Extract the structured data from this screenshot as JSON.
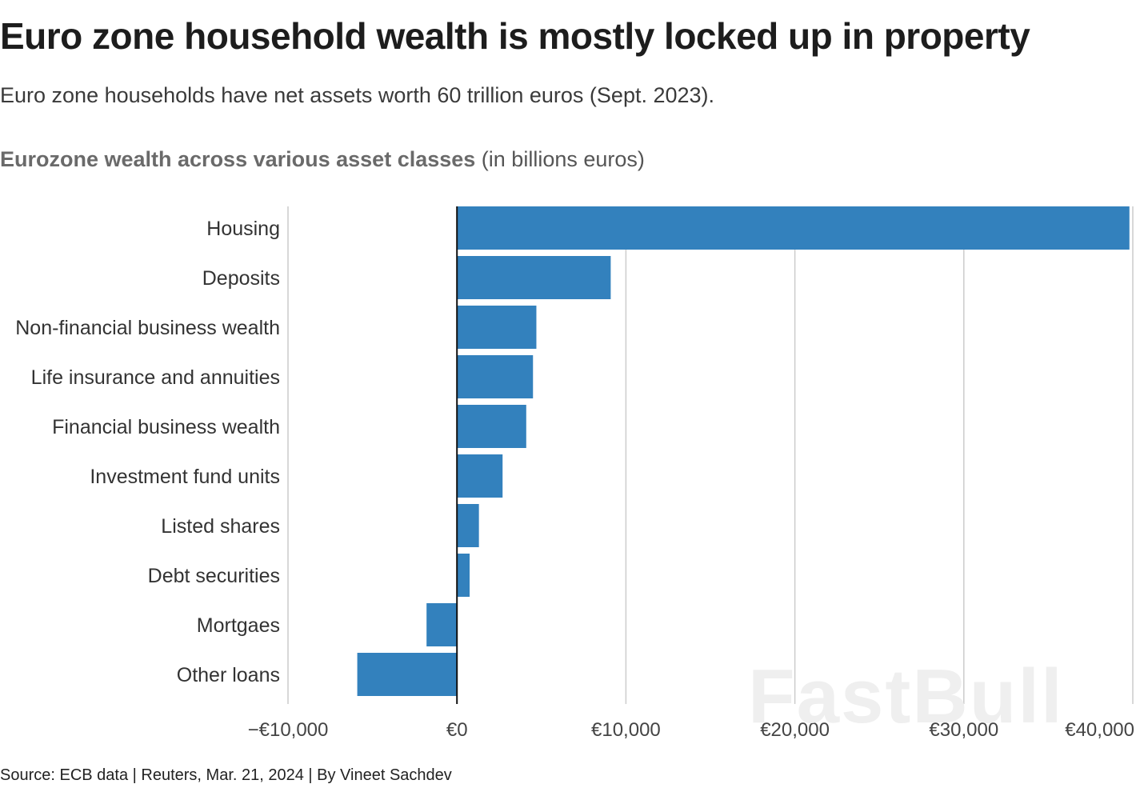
{
  "header": {
    "title": "Euro zone household wealth is mostly locked up in property",
    "subtitle": "Euro zone households have net assets worth 60 trillion euros (Sept. 2023).",
    "chart_heading_bold": "Eurozone wealth across various asset classes",
    "chart_heading_unit": " (in billions euros)"
  },
  "footer": {
    "source": "Source: ECB data | Reuters, Mar. 21, 2024 | By Vineet Sachdev"
  },
  "watermark": "FastBull",
  "colors": {
    "bar": "#3381bd",
    "grid": "#cccccc",
    "zero_line": "#111111"
  },
  "chart_data": {
    "type": "bar",
    "orientation": "horizontal",
    "title": "Eurozone wealth across various asset classes",
    "subtitle": "(in billions euros)",
    "categories": [
      "Housing",
      "Deposits",
      "Non-financial business wealth",
      "Life insurance and annuities",
      "Financial business wealth",
      "Investment fund units",
      "Listed shares",
      "Debt securities",
      "Mortgaes",
      "Other loans"
    ],
    "values": [
      39800,
      9100,
      4700,
      4500,
      4100,
      2700,
      1300,
      750,
      -1800,
      -5900
    ],
    "xlim": [
      -10000,
      40000
    ],
    "xticks": [
      -10000,
      0,
      10000,
      20000,
      30000,
      40000
    ],
    "xtick_labels": [
      "−€10,000",
      "€0",
      "€10,000",
      "€20,000",
      "€30,000",
      "€40,000"
    ],
    "xlabel": "",
    "ylabel": "",
    "grid": true
  }
}
